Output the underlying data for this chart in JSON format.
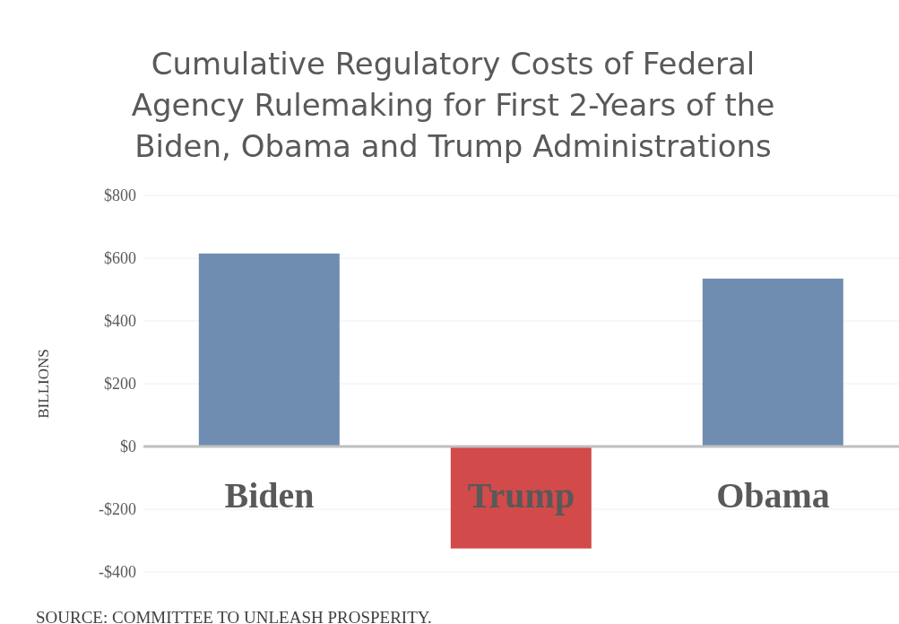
{
  "chart_data": {
    "type": "bar",
    "title": "Cumulative Regulatory Costs of Federal Agency Rulemaking for First 2-Years of the Biden, Obama and Trump Administrations",
    "ylabel": "BILLIONS",
    "categories": [
      "Biden",
      "Trump",
      "Obama"
    ],
    "values": [
      615,
      -325,
      535
    ],
    "colors": [
      "#6f8db1",
      "#d24a4a",
      "#6f8db1"
    ],
    "ylim": [
      -400,
      800
    ],
    "yticks": [
      {
        "value": -400,
        "label": "-$400"
      },
      {
        "value": -200,
        "label": "-$200"
      },
      {
        "value": 0,
        "label": "$0"
      },
      {
        "value": 200,
        "label": "$200"
      },
      {
        "value": 400,
        "label": "$400"
      },
      {
        "value": 600,
        "label": "$600"
      },
      {
        "value": 800,
        "label": "$800"
      }
    ],
    "grid": "y",
    "annotations": [
      "SOURCE: COMMITTEE TO UNLEASH PROSPERITY."
    ]
  }
}
